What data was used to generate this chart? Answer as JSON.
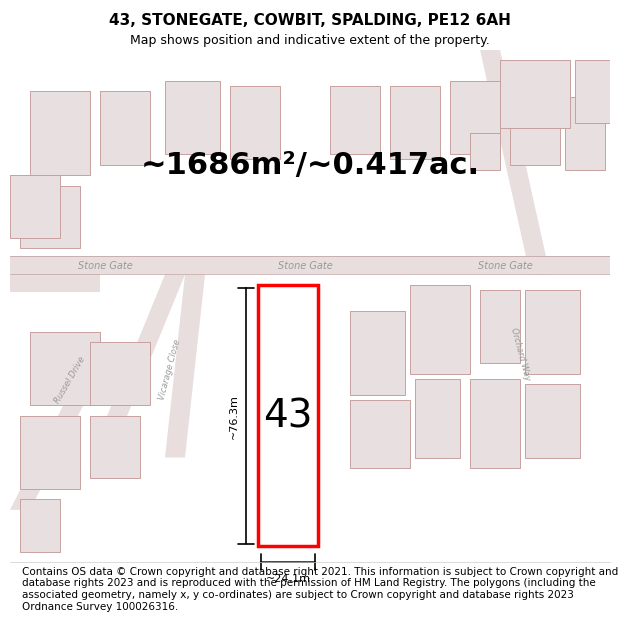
{
  "title": "43, STONEGATE, COWBIT, SPALDING, PE12 6AH",
  "subtitle": "Map shows position and indicative extent of the property.",
  "area_text": "~1686m²/~0.417ac.",
  "number_label": "43",
  "width_label": "~24.1m",
  "height_label": "~76.3m",
  "footer": "Contains OS data © Crown copyright and database right 2021. This information is subject to Crown copyright and database rights 2023 and is reproduced with the permission of HM Land Registry. The polygons (including the associated geometry, namely x, y co-ordinates) are subject to Crown copyright and database rights 2023 Ordnance Survey 100026316.",
  "bg_color": "#f5f5f5",
  "map_bg": "#f0eeee",
  "road_color": "#d4c8c8",
  "building_fill": "#e8e0e0",
  "building_edge": "#c8a0a0",
  "highlight_fill": "#ffffff",
  "highlight_edge": "#ff0000",
  "street_label_color": "#999999",
  "dim_line_color": "#000000",
  "title_fontsize": 11,
  "subtitle_fontsize": 9,
  "area_fontsize": 22,
  "number_fontsize": 28,
  "footer_fontsize": 7.5
}
